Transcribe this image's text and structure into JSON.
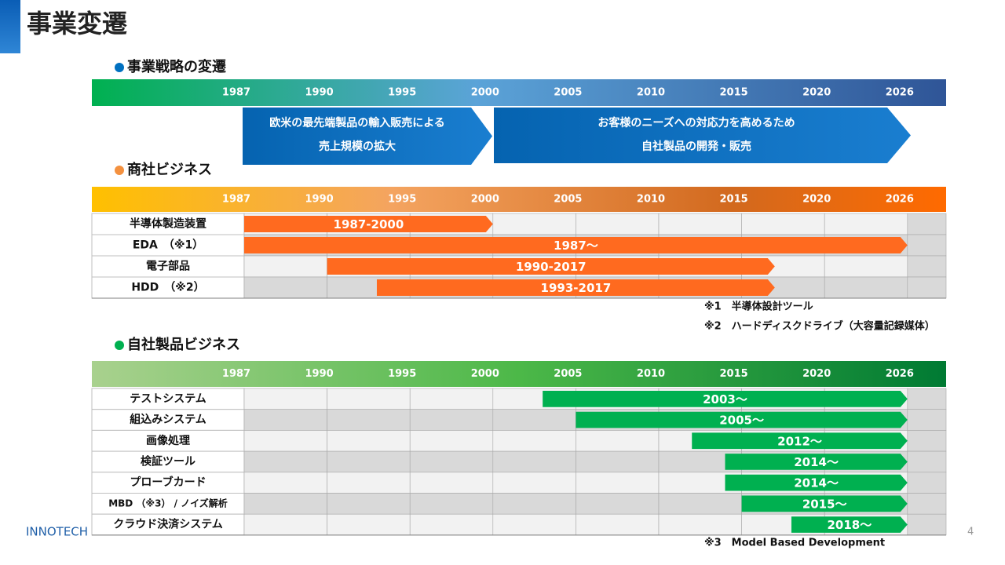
{
  "header": {
    "title": "事業変遷"
  },
  "strategy": {
    "heading": "事業戦略の変遷",
    "axis": [
      1987,
      1990,
      1995,
      2000,
      2005,
      2010,
      2015,
      2020,
      2026
    ],
    "phases": [
      {
        "lines": [
          "欧米の最先端製品の輸入販売による",
          "売上規模の拡大"
        ]
      },
      {
        "lines": [
          "お客様のニーズへの対応力を高めるため",
          "自社製品の開発・販売"
        ]
      }
    ]
  },
  "trading": {
    "heading": "商社ビジネス",
    "axis": [
      1987,
      1990,
      1995,
      2000,
      2005,
      2010,
      2015,
      2020,
      2026
    ],
    "rows": [
      {
        "label": "半導体製造装置",
        "bar": "1987-2000",
        "start": 1987,
        "end": 2000
      },
      {
        "label": "EDA　（※1）",
        "bar": "1987～",
        "start": 1987
      },
      {
        "label": "電子部品",
        "bar": "1990-2017",
        "start": 1990,
        "end": 2017
      },
      {
        "label": "HDD　（※2）",
        "bar": "1993-2017",
        "start": 1993,
        "end": 2017
      }
    ],
    "notes": [
      "※1　半導体設計ツール",
      "※2　ハードディスクドライブ（大容量記録媒体）"
    ]
  },
  "own": {
    "heading": "自社製品ビジネス",
    "axis": [
      1987,
      1990,
      1995,
      2000,
      2005,
      2010,
      2015,
      2020,
      2026
    ],
    "rows": [
      {
        "label": "テストシステム",
        "bar": "2003～",
        "start": 2003
      },
      {
        "label": "組込みシステム",
        "bar": "2005～",
        "start": 2005
      },
      {
        "label": "画像処理",
        "bar": "2012～",
        "start": 2012
      },
      {
        "label": "検証ツール",
        "bar": "2014～",
        "start": 2014
      },
      {
        "label": "プローブカード",
        "bar": "2014～",
        "start": 2014
      },
      {
        "label": "MBD （※3） / ノイズ解析",
        "bar": "2015～",
        "start": 2015
      },
      {
        "label": "クラウド決済システム",
        "bar": "2018～",
        "start": 2018
      }
    ],
    "notes": [
      "※3　Model Based Development"
    ]
  },
  "footer": {
    "logo": "INNOTECH",
    "page": 4
  }
}
